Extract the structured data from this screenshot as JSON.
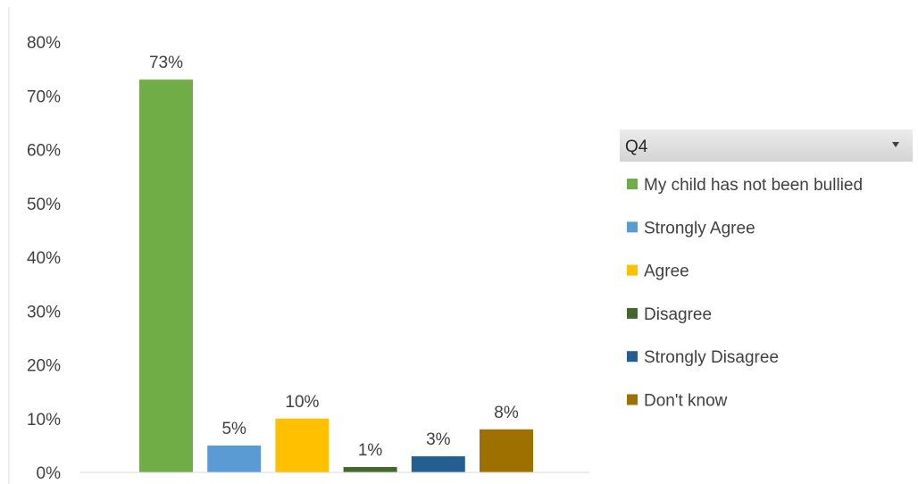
{
  "chart_data": {
    "type": "bar",
    "categories": [
      "My child has not been bullied",
      "Strongly Agree",
      "Agree",
      "Disagree",
      "Strongly Disagree",
      "Don't know"
    ],
    "values": [
      73,
      5,
      10,
      1,
      3,
      8
    ],
    "data_labels": [
      "73%",
      "5%",
      "10%",
      "1%",
      "3%",
      "8%"
    ],
    "colors": [
      "#70AD47",
      "#5B9BD5",
      "#FFC000",
      "#43682B",
      "#255E91",
      "#9E7000"
    ],
    "ylim": [
      0,
      80
    ],
    "y_ticks": [
      0,
      10,
      20,
      30,
      40,
      50,
      60,
      70,
      80
    ],
    "y_tick_labels": [
      "0%",
      "10%",
      "20%",
      "30%",
      "40%",
      "50%",
      "60%",
      "70%",
      "80%"
    ],
    "grid": false,
    "legend_placement": "right",
    "legend": {
      "filter_label": "Q4",
      "entries": [
        "My child has not been bullied",
        "Strongly Agree",
        "Agree",
        "Disagree",
        "Strongly Disagree",
        "Don't know"
      ]
    }
  }
}
